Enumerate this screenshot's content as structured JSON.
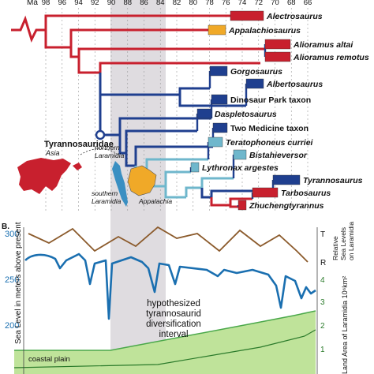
{
  "timescale": {
    "unit": "Ma",
    "ticks": [
      "98",
      "96",
      "94",
      "92",
      "90",
      "88",
      "86",
      "84",
      "82",
      "80",
      "78",
      "76",
      "74",
      "72",
      "70",
      "68",
      "66"
    ]
  },
  "colors": {
    "red": "#c8202e",
    "blue": "#1f3f8f",
    "lightblue": "#6fb7cc",
    "orange": "#f0a928",
    "shade": "#d9d6da",
    "brown": "#8b5a2b",
    "sealine": "#1a6fb0",
    "green": "#bfe39a",
    "greenline": "#4aa84a"
  },
  "taxa": [
    {
      "name": "Alectrosaurus",
      "italic": true
    },
    {
      "name": "Appalachiosaurus",
      "italic": true
    },
    {
      "name": "Alioramus altai",
      "italic": true
    },
    {
      "name": "Alioramus remotus",
      "italic": true
    },
    {
      "name": "Gorgosaurus",
      "italic": true
    },
    {
      "name": "Albertosaurus",
      "italic": true
    },
    {
      "name": "Dinosaur Park taxon",
      "italic": false
    },
    {
      "name": "Daspletosaurus",
      "italic": true
    },
    {
      "name": "Two Medicine taxon",
      "italic": false
    },
    {
      "name": "Teratophoneus curriei",
      "italic": true
    },
    {
      "name": "Bistahieversor",
      "italic": true
    },
    {
      "name": "Lythronax argestes",
      "italic": true
    },
    {
      "name": "Tyrannosaurus",
      "italic": true
    },
    {
      "name": "Tarbosaurus",
      "italic": true
    },
    {
      "name": "Zhuchengtyrannus",
      "italic": true
    }
  ],
  "node_label": "Tyrannosauridae",
  "map_labels": {
    "asia": "Asia",
    "north": "northern\nLaramidia",
    "south": "southern\nLaramidia",
    "appalachia": "Appalachia"
  },
  "panel_b": {
    "letter": "B.",
    "left_axis_label": "Sea Level in meters above present",
    "left_ticks": [
      "300",
      "250",
      "200"
    ],
    "right_top_label": "Relative\nSea Levels\non Laramidia",
    "right_top_ticks": [
      "T",
      "R"
    ],
    "right_bottom_label": "Land Area of Laramidia 10⁶km²",
    "right_bottom_ticks": [
      "4",
      "3",
      "2",
      "1"
    ],
    "hyp_text": [
      "hypothesized",
      "tyrannosaurid",
      "diversification",
      "interval"
    ],
    "coastal": "coastal plain"
  }
}
